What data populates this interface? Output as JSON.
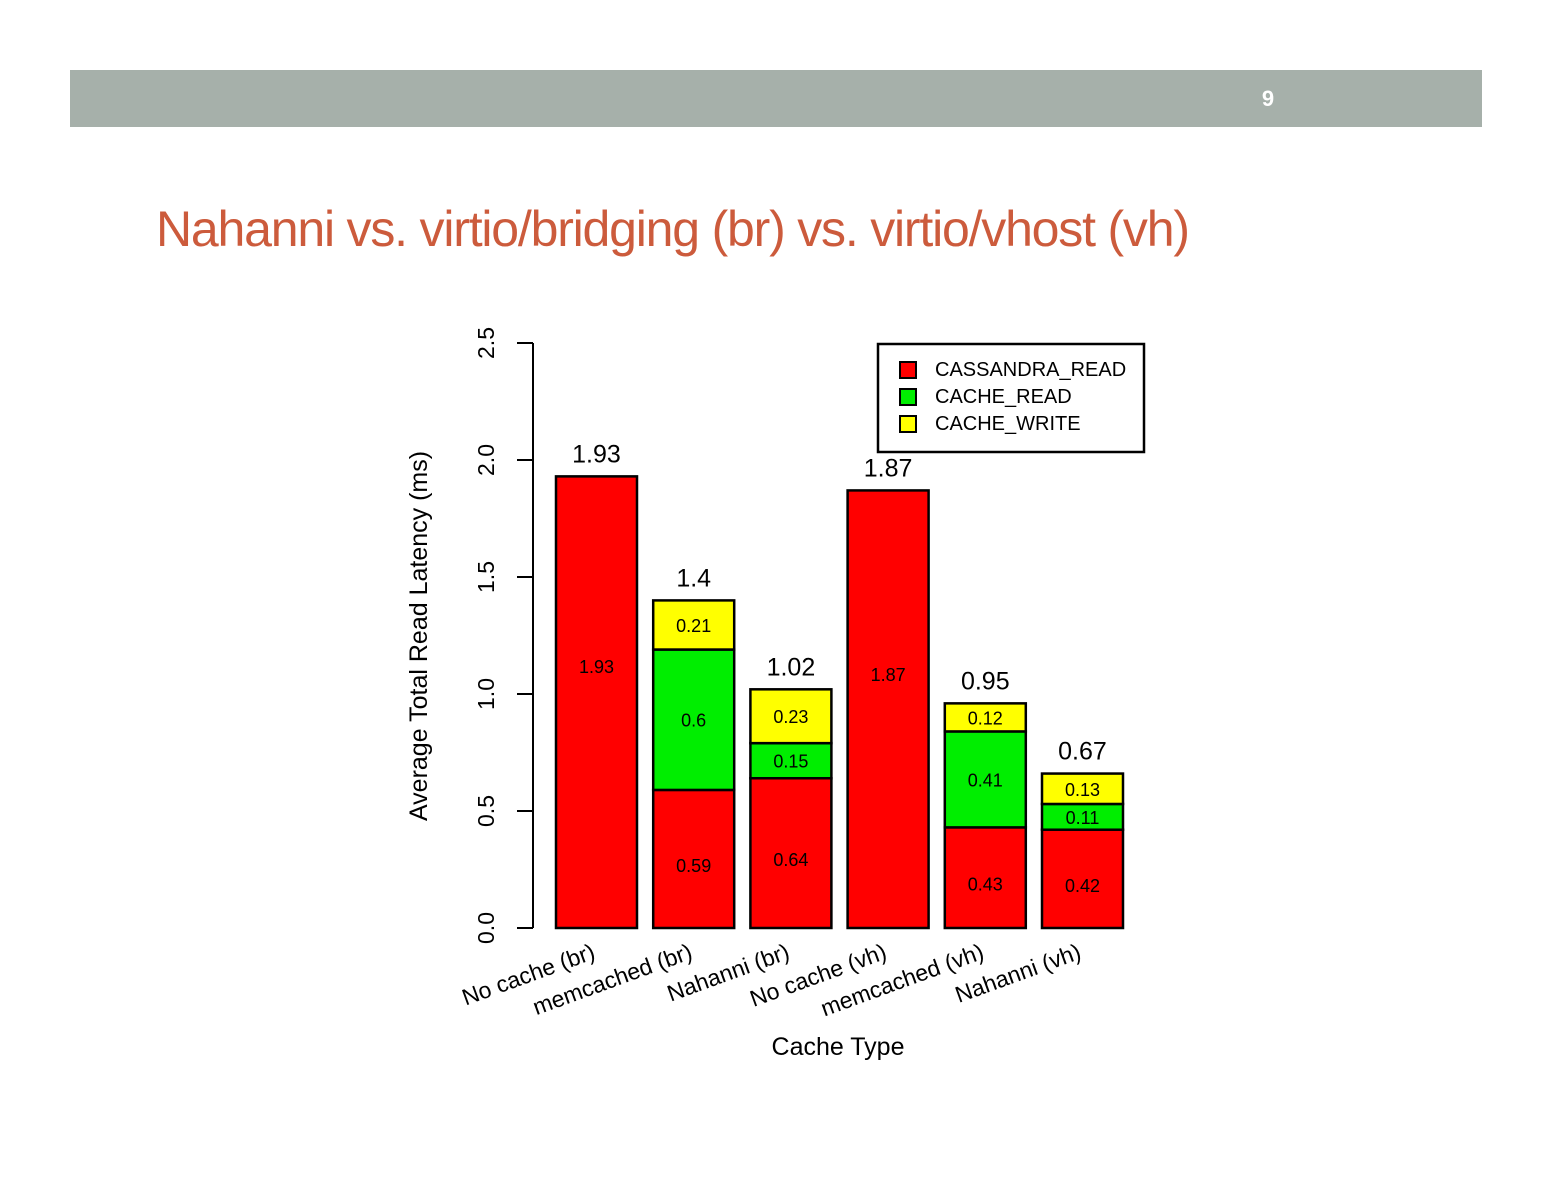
{
  "slide": {
    "page_number": "9",
    "title": "Nahanni vs. virtio/bridging (br) vs. virtio/vhost (vh)"
  },
  "colors": {
    "header_bar": "#a6b0aa",
    "title": "#cc5b3c",
    "CASSANDRA_READ": "#ff0000",
    "CACHE_READ": "#00ee00",
    "CACHE_WRITE": "#ffff00"
  },
  "chart_data": {
    "type": "bar",
    "stacked": true,
    "categories": [
      "No cache (br)",
      "memcached (br)",
      "Nahanni (br)",
      "No cache (vh)",
      "memcached (vh)",
      "Nahanni (vh)"
    ],
    "series": [
      {
        "name": "CASSANDRA_READ",
        "values": [
          1.93,
          0.59,
          0.64,
          1.87,
          0.43,
          0.42
        ]
      },
      {
        "name": "CACHE_READ",
        "values": [
          null,
          0.6,
          0.15,
          null,
          0.41,
          0.11
        ]
      },
      {
        "name": "CACHE_WRITE",
        "values": [
          null,
          0.21,
          0.23,
          null,
          0.12,
          0.13
        ]
      }
    ],
    "totals": [
      "1.93",
      "1.4",
      "1.02",
      "1.87",
      "0.95",
      "0.67"
    ],
    "xlabel": "Cache Type",
    "ylabel": "Average Total Read Latency (ms)",
    "ylim": [
      0,
      2.5
    ],
    "yticks": [
      "0.0",
      "0.5",
      "1.0",
      "1.5",
      "2.0",
      "2.5"
    ],
    "legend_position": "top-right",
    "grid": false
  }
}
